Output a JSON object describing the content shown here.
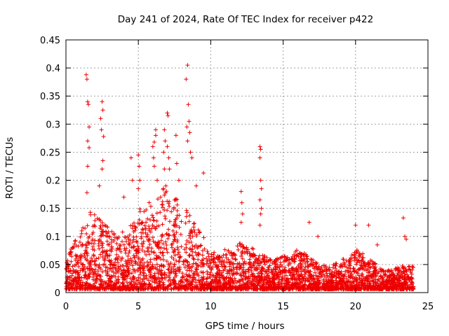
{
  "chart_data": {
    "type": "scatter",
    "title": "Day 241 of 2024, Rate Of TEC Index for receiver p422",
    "xlabel": "GPS time / hours",
    "ylabel": "ROTI / TECUs",
    "xlim": [
      0,
      25
    ],
    "ylim": [
      0,
      0.45
    ],
    "xticks": [
      0,
      5,
      10,
      15,
      20,
      25
    ],
    "xtick_labels": [
      "0",
      "5",
      "10",
      "15",
      "20",
      "25"
    ],
    "yticks": [
      0,
      0.05,
      0.1,
      0.15,
      0.2,
      0.25,
      0.3,
      0.35,
      0.4,
      0.45
    ],
    "ytick_labels": [
      "0",
      "0.05",
      "0.1",
      "0.15",
      "0.2",
      "0.25",
      "0.3",
      "0.35",
      "0.4",
      "0.45"
    ],
    "grid": true,
    "marker": "+",
    "color": "#ee0000",
    "envelope": {
      "hours": [
        0,
        0.5,
        1,
        1.5,
        2,
        2.5,
        3,
        3.5,
        4,
        4.5,
        5,
        5.5,
        6,
        6.5,
        7,
        7.5,
        8,
        8.5,
        9,
        9.5,
        10,
        10.5,
        11,
        11.5,
        12,
        12.5,
        13,
        13.5,
        14,
        14.5,
        15,
        15.5,
        16,
        16.5,
        17,
        17.5,
        18,
        18.5,
        19,
        19.5,
        20,
        20.5,
        21,
        21.5,
        22,
        22.5,
        23,
        23.5,
        24
      ],
      "max_roti": [
        0.06,
        0.09,
        0.1,
        0.16,
        0.14,
        0.13,
        0.12,
        0.1,
        0.11,
        0.12,
        0.15,
        0.16,
        0.17,
        0.2,
        0.18,
        0.17,
        0.16,
        0.14,
        0.12,
        0.1,
        0.08,
        0.07,
        0.08,
        0.07,
        0.09,
        0.08,
        0.08,
        0.07,
        0.06,
        0.06,
        0.07,
        0.06,
        0.08,
        0.07,
        0.06,
        0.05,
        0.05,
        0.05,
        0.06,
        0.06,
        0.08,
        0.07,
        0.06,
        0.05,
        0.04,
        0.04,
        0.05,
        0.05,
        0.05
      ]
    },
    "spikes": [
      {
        "x": 1.4,
        "y": 0.388
      },
      {
        "x": 1.45,
        "y": 0.38
      },
      {
        "x": 1.5,
        "y": 0.34
      },
      {
        "x": 1.55,
        "y": 0.335
      },
      {
        "x": 1.6,
        "y": 0.295
      },
      {
        "x": 1.5,
        "y": 0.27
      },
      {
        "x": 1.6,
        "y": 0.258
      },
      {
        "x": 1.5,
        "y": 0.225
      },
      {
        "x": 1.45,
        "y": 0.178
      },
      {
        "x": 2.5,
        "y": 0.34
      },
      {
        "x": 2.55,
        "y": 0.325
      },
      {
        "x": 2.4,
        "y": 0.31
      },
      {
        "x": 2.45,
        "y": 0.29
      },
      {
        "x": 2.6,
        "y": 0.278
      },
      {
        "x": 2.55,
        "y": 0.235
      },
      {
        "x": 2.5,
        "y": 0.22
      },
      {
        "x": 2.3,
        "y": 0.19
      },
      {
        "x": 4.0,
        "y": 0.17
      },
      {
        "x": 4.5,
        "y": 0.24
      },
      {
        "x": 4.6,
        "y": 0.2
      },
      {
        "x": 5.0,
        "y": 0.245
      },
      {
        "x": 5.05,
        "y": 0.225
      },
      {
        "x": 5.1,
        "y": 0.2
      },
      {
        "x": 5.0,
        "y": 0.185
      },
      {
        "x": 6.1,
        "y": 0.268
      },
      {
        "x": 6.05,
        "y": 0.24
      },
      {
        "x": 6.1,
        "y": 0.225
      },
      {
        "x": 6.2,
        "y": 0.28
      },
      {
        "x": 6.2,
        "y": 0.29
      },
      {
        "x": 6.0,
        "y": 0.26
      },
      {
        "x": 6.3,
        "y": 0.2
      },
      {
        "x": 6.8,
        "y": 0.29
      },
      {
        "x": 6.85,
        "y": 0.27
      },
      {
        "x": 6.75,
        "y": 0.25
      },
      {
        "x": 6.8,
        "y": 0.22
      },
      {
        "x": 7.0,
        "y": 0.32
      },
      {
        "x": 7.05,
        "y": 0.315
      },
      {
        "x": 7.0,
        "y": 0.26
      },
      {
        "x": 7.1,
        "y": 0.24
      },
      {
        "x": 7.15,
        "y": 0.22
      },
      {
        "x": 6.9,
        "y": 0.19
      },
      {
        "x": 7.6,
        "y": 0.28
      },
      {
        "x": 7.65,
        "y": 0.23
      },
      {
        "x": 7.8,
        "y": 0.2
      },
      {
        "x": 8.3,
        "y": 0.38
      },
      {
        "x": 8.4,
        "y": 0.405
      },
      {
        "x": 8.45,
        "y": 0.335
      },
      {
        "x": 8.5,
        "y": 0.305
      },
      {
        "x": 8.35,
        "y": 0.295
      },
      {
        "x": 8.55,
        "y": 0.285
      },
      {
        "x": 8.4,
        "y": 0.27
      },
      {
        "x": 8.6,
        "y": 0.25
      },
      {
        "x": 8.7,
        "y": 0.24
      },
      {
        "x": 9.0,
        "y": 0.19
      },
      {
        "x": 9.5,
        "y": 0.213
      },
      {
        "x": 12.1,
        "y": 0.18
      },
      {
        "x": 12.15,
        "y": 0.16
      },
      {
        "x": 12.2,
        "y": 0.14
      },
      {
        "x": 12.1,
        "y": 0.125
      },
      {
        "x": 13.4,
        "y": 0.26
      },
      {
        "x": 13.45,
        "y": 0.255
      },
      {
        "x": 13.4,
        "y": 0.24
      },
      {
        "x": 13.45,
        "y": 0.2
      },
      {
        "x": 13.5,
        "y": 0.185
      },
      {
        "x": 13.4,
        "y": 0.165
      },
      {
        "x": 13.5,
        "y": 0.15
      },
      {
        "x": 13.45,
        "y": 0.14
      },
      {
        "x": 13.4,
        "y": 0.12
      },
      {
        "x": 16.8,
        "y": 0.125
      },
      {
        "x": 17.4,
        "y": 0.1
      },
      {
        "x": 20.0,
        "y": 0.12
      },
      {
        "x": 20.9,
        "y": 0.12
      },
      {
        "x": 21.5,
        "y": 0.085
      },
      {
        "x": 23.3,
        "y": 0.133
      },
      {
        "x": 23.4,
        "y": 0.1
      },
      {
        "x": 23.5,
        "y": 0.095
      }
    ]
  }
}
